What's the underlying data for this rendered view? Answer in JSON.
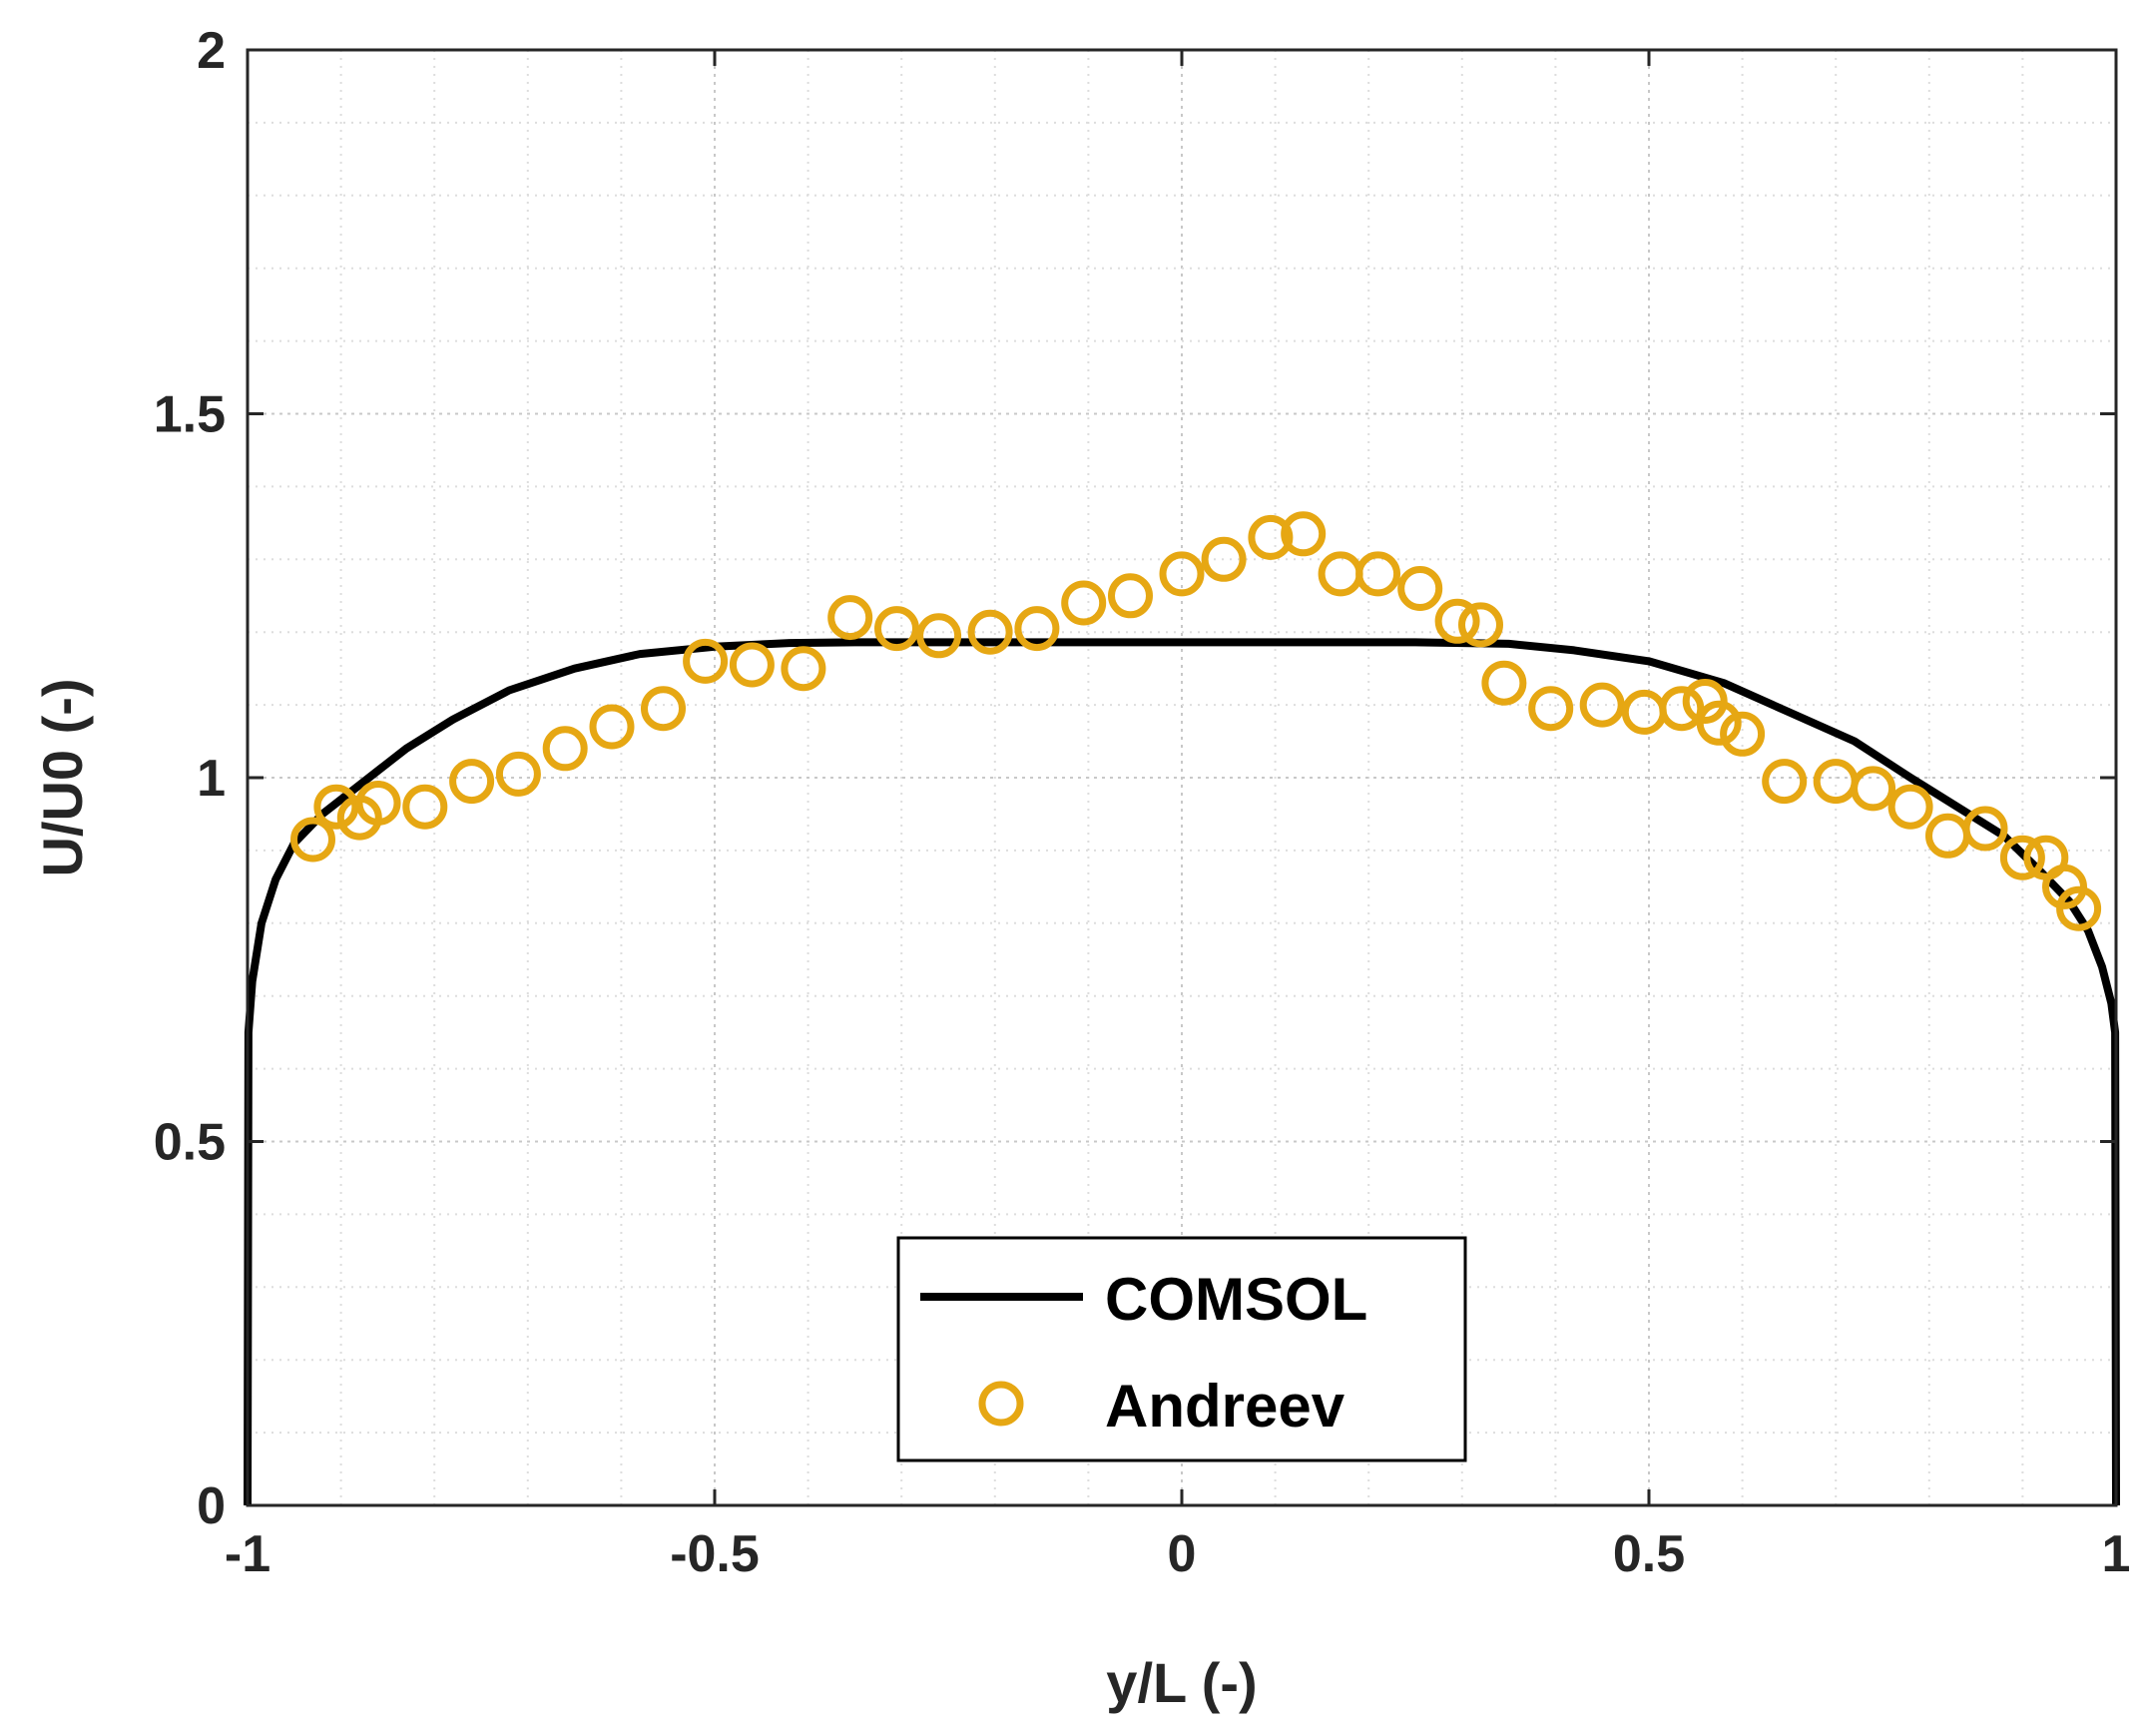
{
  "chart_data": {
    "type": "line",
    "title": "",
    "xlabel": "y/L (-)",
    "ylabel": "U/U0 (-)",
    "xlim": [
      -1,
      1
    ],
    "ylim": [
      0,
      2
    ],
    "xticks": [
      "-1",
      "-0.5",
      "0",
      "0.5",
      "1"
    ],
    "yticks": [
      "0",
      "0.5",
      "1",
      "1.5",
      "2"
    ],
    "grid": "on (dotted, with minor grid)",
    "legend_position": "bottom-center",
    "series": [
      {
        "name": "COMSOL",
        "style": "solid-line",
        "color": "#000000",
        "x": [
          -1.0,
          -0.999,
          -0.995,
          -0.985,
          -0.97,
          -0.95,
          -0.92,
          -0.88,
          -0.83,
          -0.78,
          -0.72,
          -0.65,
          -0.58,
          -0.5,
          -0.42,
          -0.35,
          -0.25,
          -0.1,
          0.0,
          0.1,
          0.25,
          0.35,
          0.42,
          0.5,
          0.58,
          0.65,
          0.72,
          0.78,
          0.83,
          0.88,
          0.92,
          0.95,
          0.97,
          0.985,
          0.995,
          0.999,
          1.0
        ],
        "y": [
          0.0,
          0.65,
          0.72,
          0.8,
          0.86,
          0.91,
          0.95,
          0.99,
          1.04,
          1.08,
          1.12,
          1.15,
          1.17,
          1.18,
          1.185,
          1.186,
          1.186,
          1.186,
          1.186,
          1.186,
          1.186,
          1.184,
          1.175,
          1.16,
          1.13,
          1.09,
          1.05,
          1.0,
          0.96,
          0.92,
          0.87,
          0.83,
          0.79,
          0.74,
          0.69,
          0.65,
          0.0
        ]
      },
      {
        "name": "Andreev",
        "style": "open-circle",
        "color": "#E6A713",
        "x": [
          -0.93,
          -0.905,
          -0.88,
          -0.86,
          -0.81,
          -0.76,
          -0.71,
          -0.66,
          -0.61,
          -0.555,
          -0.51,
          -0.46,
          -0.405,
          -0.355,
          -0.305,
          -0.26,
          -0.205,
          -0.155,
          -0.105,
          -0.055,
          0.0,
          0.045,
          0.095,
          0.13,
          0.17,
          0.21,
          0.255,
          0.295,
          0.32,
          0.345,
          0.395,
          0.45,
          0.495,
          0.535,
          0.56,
          0.575,
          0.6,
          0.645,
          0.7,
          0.74,
          0.78,
          0.82,
          0.86,
          0.9,
          0.925,
          0.945,
          0.96
        ],
        "y": [
          0.915,
          0.96,
          0.945,
          0.965,
          0.96,
          0.995,
          1.005,
          1.04,
          1.07,
          1.095,
          1.16,
          1.155,
          1.15,
          1.22,
          1.205,
          1.195,
          1.2,
          1.205,
          1.24,
          1.25,
          1.28,
          1.3,
          1.33,
          1.335,
          1.28,
          1.28,
          1.26,
          1.215,
          1.21,
          1.13,
          1.095,
          1.1,
          1.09,
          1.095,
          1.105,
          1.075,
          1.06,
          0.995,
          0.995,
          0.985,
          0.96,
          0.92,
          0.93,
          0.89,
          0.89,
          0.85,
          0.82
        ]
      }
    ]
  }
}
